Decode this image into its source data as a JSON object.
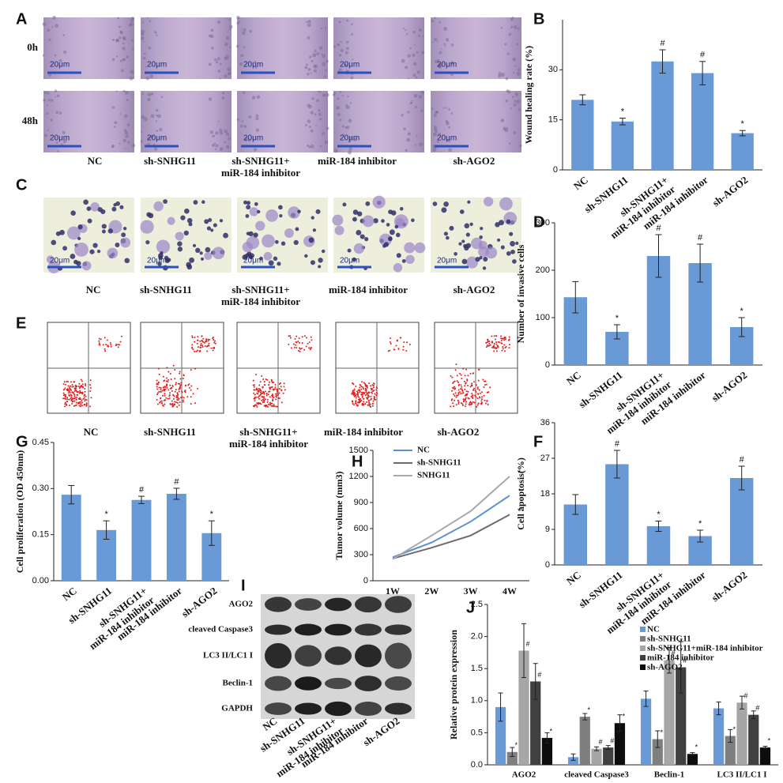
{
  "figure": {
    "A": {
      "letter": "A",
      "rows": [
        "0h",
        "48h"
      ],
      "scale": "20μm",
      "groups": [
        "NC",
        "sh-SNHG11",
        [
          "sh-SNHG11+",
          "miR-184 inhibitor"
        ],
        "miR-184 inhibitor",
        "sh-AGO2"
      ]
    },
    "C": {
      "letter": "C",
      "scale": "20μm",
      "groups": [
        "NC",
        "sh-SNHG11",
        [
          "sh-SNHG11+",
          "miR-184 inhibitor"
        ],
        "miR-184 inhibitor",
        "sh-AGO2"
      ]
    },
    "E": {
      "letter": "E",
      "groups": [
        "NC",
        "sh-SNHG11",
        [
          "sh-SNHG11+",
          "miR-184 inhibitor"
        ],
        "miR-184 inhibitor",
        "sh-AGO2"
      ]
    },
    "I": {
      "letter": "I",
      "bands": [
        "AGO2",
        "cleaved Caspase3",
        "LC3 II/LC1 I",
        "Beclin-1",
        "GAPDH"
      ],
      "groups": [
        "NC",
        "sh-SNHG11",
        [
          "sh-SNHG11+",
          "miR-184 inhibitor"
        ],
        "miR-184 inhibitor",
        "sh-AGO2"
      ]
    }
  },
  "chart_data": [
    {
      "type": "bar",
      "panel": "B",
      "ylabel": "Wound healing rate (%)",
      "color": "#6a9ad6",
      "categories": [
        "NC",
        "sh-SNHG11",
        [
          "sh-SNHG11+",
          "miR-184 inhibitor"
        ],
        "miR-184 inhibitor",
        "sh-AGO2"
      ],
      "values": [
        21,
        14.5,
        32.5,
        29,
        11
      ],
      "errors": [
        1.5,
        1,
        3.5,
        3.5,
        0.8
      ],
      "markers": [
        null,
        "*",
        "#",
        "#",
        "*"
      ],
      "ylim": [
        0,
        45
      ],
      "yticks": [
        0,
        15,
        30
      ]
    },
    {
      "type": "bar",
      "panel": "D",
      "ylabel": "Number of invasive cells",
      "color": "#6a9ad6",
      "categories": [
        "NC",
        "sh-SNHG11",
        [
          "sh-SNHG11+",
          "miR-184 inhibitor"
        ],
        "miR-184 inhibitor",
        "sh-AGO2"
      ],
      "values": [
        143,
        70,
        230,
        215,
        80
      ],
      "errors": [
        33,
        15,
        45,
        40,
        20
      ],
      "markers": [
        null,
        "*",
        "#",
        "#",
        "*"
      ],
      "ylim": [
        0,
        300
      ],
      "yticks": [
        0,
        100,
        200,
        300
      ]
    },
    {
      "type": "bar",
      "panel": "F",
      "ylabel": "Cell apoptosis(%)",
      "color": "#6a9ad6",
      "categories": [
        "NC",
        "sh-SNHG11",
        [
          "sh-SNHG11+",
          "miR-184 inhibitor"
        ],
        "miR-184 inhibitor",
        "sh-AGO2"
      ],
      "values": [
        15.3,
        25.5,
        9.8,
        7.3,
        22
      ],
      "errors": [
        2.5,
        3.5,
        1.3,
        1.5,
        3
      ],
      "markers": [
        null,
        "#",
        "*",
        "*",
        "#"
      ],
      "ylim": [
        0,
        36
      ],
      "yticks": [
        0,
        9,
        18,
        27,
        36
      ]
    },
    {
      "type": "bar",
      "panel": "G",
      "ylabel": "Cell proliferation (OD 450nm)",
      "color": "#6a9ad6",
      "categories": [
        "NC",
        "sh-SNHG11",
        [
          "sh-SNHG11+",
          "miR-184 inhibitor"
        ],
        "miR-184 inhibitor",
        "sh-AGO2"
      ],
      "values": [
        0.28,
        0.165,
        0.263,
        0.283,
        0.155
      ],
      "errors": [
        0.03,
        0.03,
        0.012,
        0.018,
        0.04
      ],
      "markers": [
        null,
        "*",
        "#",
        "#",
        "*"
      ],
      "ylim": [
        0,
        0.45
      ],
      "yticks": [
        {
          "value": 0,
          "label": "0.00"
        },
        0.15,
        {
          "value": 0.3,
          "label": "0.30"
        },
        0.45
      ]
    },
    {
      "type": "line",
      "panel": "H",
      "ylabel": "Tumor volume (mm3)",
      "categories": [
        "1W",
        "2W",
        "3W",
        "4W"
      ],
      "series": [
        {
          "name": "NC",
          "color": "#5b8fd6",
          "values": [
            270,
            440,
            680,
            980
          ]
        },
        {
          "name": "sh-SNHG11",
          "color": "#6b6b6b",
          "values": [
            255,
            380,
            520,
            760
          ],
          "marker": "*"
        },
        {
          "name": "SNHG11",
          "color": "#a8a8a8",
          "values": [
            250,
            520,
            800,
            1200
          ],
          "marker": "*"
        }
      ],
      "ylim": [
        0,
        1500
      ],
      "yticks": [
        0,
        300,
        600,
        900,
        1200,
        1500
      ]
    },
    {
      "type": "bar",
      "panel": "J",
      "ylabel": "Relative protein expression",
      "categories": [
        "AGO2",
        "cleaved Caspase3",
        "Beclin-1",
        "LC3 II/LC1 I"
      ],
      "series": [
        {
          "name": "NC",
          "color": "#6a9ad6",
          "values": [
            0.9,
            0.12,
            1.03,
            0.88
          ],
          "errors": [
            0.22,
            0.05,
            0.12,
            0.1
          ]
        },
        {
          "name": "sh-SNHG11",
          "color": "#7f7f7f",
          "values": [
            0.2,
            0.75,
            0.4,
            0.45
          ],
          "errors": [
            0.07,
            0.05,
            0.13,
            0.1
          ],
          "markers": [
            "*",
            "*",
            "*",
            "*"
          ]
        },
        {
          "name": "sh-SNHG11+miR-184 inhibitor",
          "color": "#a6a6a6",
          "values": [
            1.78,
            0.25,
            1.63,
            0.97
          ],
          "errors": [
            0.42,
            0.03,
            0.2,
            0.1
          ],
          "markers": [
            "#",
            "#",
            "#",
            "#"
          ]
        },
        {
          "name": "miR-184 inhibitor",
          "color": "#404040",
          "values": [
            1.3,
            0.27,
            1.52,
            0.78
          ],
          "errors": [
            0.28,
            0.03,
            0.4,
            0.06
          ],
          "markers": [
            "#",
            "#",
            "#",
            "#"
          ]
        },
        {
          "name": "sh-AGO2",
          "color": "#0d0d0d",
          "values": [
            0.42,
            0.65,
            0.17,
            0.27
          ],
          "errors": [
            0.08,
            0.13,
            0.02,
            0.02
          ],
          "markers": [
            "*",
            "*",
            "*",
            "*"
          ]
        }
      ],
      "ylim": [
        0,
        2.5
      ],
      "yticks": [
        {
          "value": 0,
          "label": "0.0"
        },
        0.5,
        {
          "value": 1,
          "label": "1.0"
        },
        1.5,
        {
          "value": 2,
          "label": "2.0"
        },
        2.5
      ]
    }
  ]
}
